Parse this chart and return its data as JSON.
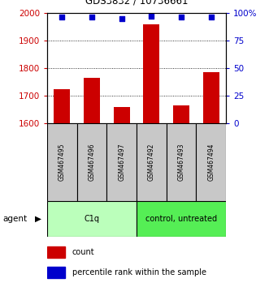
{
  "title": "GDS3832 / 10736661",
  "categories": [
    "GSM467495",
    "GSM467496",
    "GSM467497",
    "GSM467492",
    "GSM467493",
    "GSM467494"
  ],
  "bar_values": [
    1725,
    1765,
    1660,
    1960,
    1665,
    1785
  ],
  "percentile_values": [
    96,
    96,
    95,
    97,
    96,
    96
  ],
  "ylim_left": [
    1600,
    2000
  ],
  "ylim_right": [
    0,
    100
  ],
  "yticks_left": [
    1600,
    1700,
    1800,
    1900,
    2000
  ],
  "yticks_right": [
    0,
    25,
    50,
    75,
    100
  ],
  "bar_color": "#cc0000",
  "scatter_color": "#0000cc",
  "group_labels": [
    "C1q",
    "control, untreated"
  ],
  "group_colors_light": [
    "#bbffbb",
    "#55ee55"
  ],
  "group_ranges": [
    [
      0,
      3
    ],
    [
      3,
      6
    ]
  ],
  "agent_label": "agent",
  "legend_count_label": "count",
  "legend_percentile_label": "percentile rank within the sample",
  "bar_width": 0.55,
  "ytick_color_left": "#cc0000",
  "ytick_color_right": "#0000cc",
  "sample_box_color": "#c8c8c8"
}
